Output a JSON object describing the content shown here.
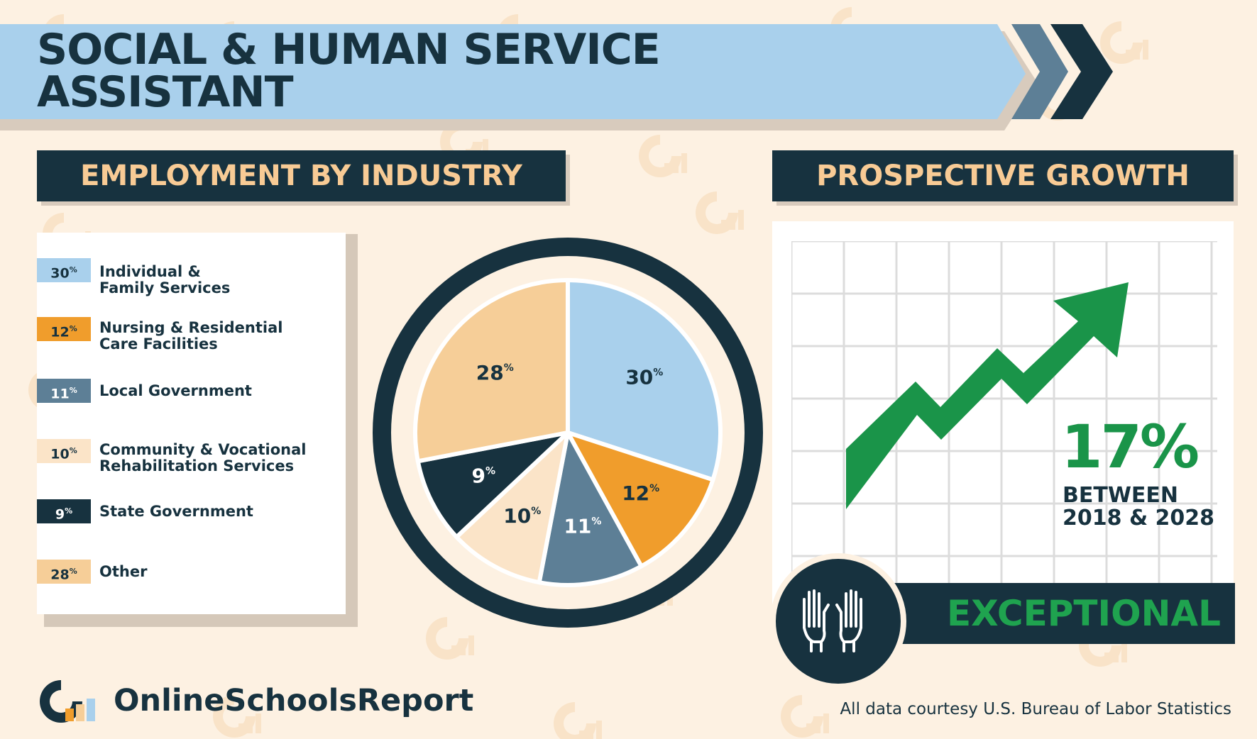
{
  "title": {
    "line1": "SOCIAL & HUMAN SERVICE",
    "line2": "ASSISTANT"
  },
  "colors": {
    "navy": "#17323f",
    "light_blue": "#a9d0ec",
    "orange": "#f09d2c",
    "slate": "#5d7f96",
    "cream": "#fbe4c8",
    "peach": "#f6ce98",
    "green": "#1a9449"
  },
  "employment": {
    "heading": "EMPLOYMENT BY INDUSTRY"
  },
  "chart_data": {
    "type": "pie",
    "title": "EMPLOYMENT BY INDUSTRY",
    "legend_position": "left",
    "slices": [
      {
        "pct_label": "30",
        "value": 30,
        "line1": "Individual &",
        "line2": "Family Services",
        "color": "#a9d0ec",
        "text_color": "#17323f"
      },
      {
        "pct_label": "12",
        "value": 12,
        "line1": "Nursing & Residential",
        "line2": "Care Facilities",
        "color": "#f09d2c",
        "text_color": "#17323f"
      },
      {
        "pct_label": "11",
        "value": 11,
        "line1": "Local Government",
        "line2": "",
        "color": "#5d7f96",
        "text_color": "#ffffff"
      },
      {
        "pct_label": "10",
        "value": 10,
        "line1": "Community & Vocational",
        "line2": "Rehabilitation Services",
        "color": "#fbe4c8",
        "text_color": "#17323f"
      },
      {
        "pct_label": "9",
        "value": 9,
        "line1": "State Government",
        "line2": "",
        "color": "#17323f",
        "text_color": "#ffffff"
      },
      {
        "pct_label": "28",
        "value": 28,
        "line1": "Other",
        "line2": "",
        "color": "#f6ce98",
        "text_color": "#17323f"
      }
    ],
    "percent_suffix": "%"
  },
  "growth": {
    "heading": "PROSPECTIVE GROWTH",
    "value": "17%",
    "line1": "BETWEEN",
    "line2": "2018 & 2028",
    "rating": "EXCEPTIONAL",
    "icon": "raised-hands-icon"
  },
  "footer": {
    "brand": "OnlineSchoolsReport",
    "credit": "All data courtesy U.S. Bureau of Labor Statistics"
  }
}
